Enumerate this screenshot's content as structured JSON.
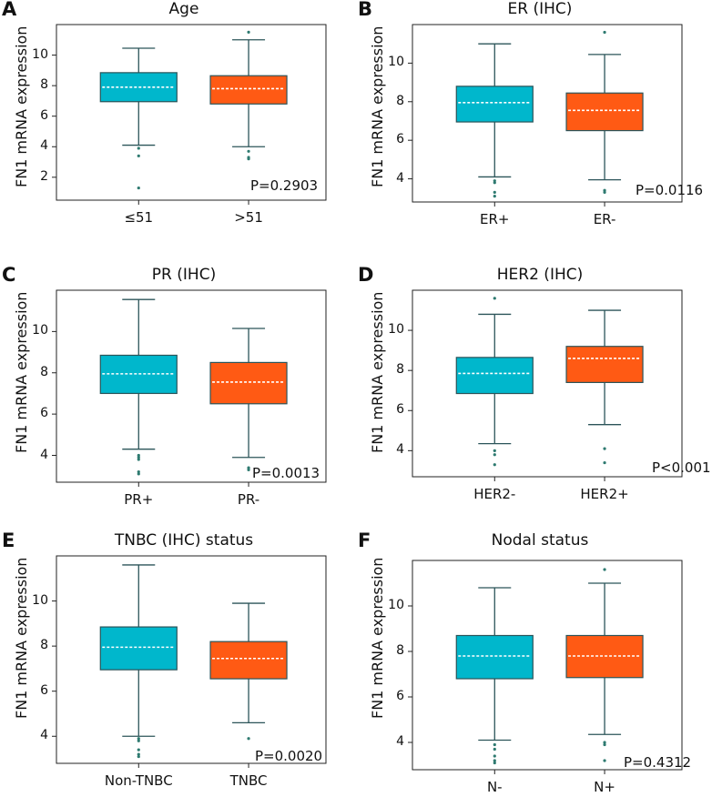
{
  "colors": {
    "cyan": "#00b7cc",
    "orange": "#ff5a14",
    "stroke": "#2b5459",
    "median": "#ffffff"
  },
  "chart_data": [
    {
      "id": "A",
      "type": "box",
      "title": "Age",
      "ylabel": "FN1 mRNA expression",
      "ylim": [
        0.5,
        12
      ],
      "yticks": [
        2,
        4,
        6,
        8,
        10
      ],
      "pvalue": "P=0.2903",
      "groups": [
        {
          "label": "≤51",
          "color": "cyan",
          "whisker_low": 4.1,
          "q1": 6.95,
          "median": 7.9,
          "q3": 8.85,
          "whisker_high": 10.45,
          "outliers": [
            3.9,
            3.4,
            1.3
          ]
        },
        {
          "label": ">51",
          "color": "orange",
          "whisker_low": 4.0,
          "q1": 6.8,
          "median": 7.8,
          "q3": 8.65,
          "whisker_high": 11.0,
          "outliers": [
            11.5,
            3.7,
            3.3,
            3.2
          ]
        }
      ]
    },
    {
      "id": "B",
      "type": "box",
      "title": "ER (IHC)",
      "ylabel": "FN1 mRNA expression",
      "ylim": [
        2.8,
        12
      ],
      "yticks": [
        4,
        6,
        8,
        10
      ],
      "pvalue": "P=0.0116",
      "groups": [
        {
          "label": "ER+",
          "color": "cyan",
          "whisker_low": 4.1,
          "q1": 6.95,
          "median": 7.95,
          "q3": 8.8,
          "whisker_high": 11.0,
          "outliers": [
            3.9,
            3.8,
            3.3,
            3.1
          ]
        },
        {
          "label": "ER-",
          "color": "orange",
          "whisker_low": 3.95,
          "q1": 6.5,
          "median": 7.55,
          "q3": 8.45,
          "whisker_high": 10.45,
          "outliers": [
            11.6,
            3.4,
            3.3
          ]
        }
      ]
    },
    {
      "id": "C",
      "type": "box",
      "title": "PR (IHC)",
      "ylabel": "FN1 mRNA expression",
      "ylim": [
        2.7,
        12
      ],
      "yticks": [
        4,
        6,
        8,
        10
      ],
      "pvalue": "P=0.0013",
      "groups": [
        {
          "label": "PR+",
          "color": "cyan",
          "whisker_low": 4.3,
          "q1": 7.0,
          "median": 7.95,
          "q3": 8.85,
          "whisker_high": 11.55,
          "outliers": [
            4.0,
            3.9,
            3.8,
            3.2,
            3.1
          ]
        },
        {
          "label": "PR-",
          "color": "orange",
          "whisker_low": 3.9,
          "q1": 6.5,
          "median": 7.55,
          "q3": 8.5,
          "whisker_high": 10.15,
          "outliers": [
            3.4,
            3.3
          ]
        }
      ]
    },
    {
      "id": "D",
      "type": "box",
      "title": "HER2 (IHC)",
      "ylabel": "FN1 mRNA expression",
      "ylim": [
        2.7,
        12
      ],
      "yticks": [
        4,
        6,
        8,
        10
      ],
      "pvalue": "P<0.001",
      "groups": [
        {
          "label": "HER2-",
          "color": "cyan",
          "whisker_low": 4.35,
          "q1": 6.85,
          "median": 7.85,
          "q3": 8.65,
          "whisker_high": 10.8,
          "outliers": [
            11.6,
            4.0,
            3.8,
            3.3
          ]
        },
        {
          "label": "HER2+",
          "color": "orange",
          "whisker_low": 5.3,
          "q1": 7.4,
          "median": 8.6,
          "q3": 9.2,
          "whisker_high": 11.0,
          "outliers": [
            4.1,
            3.4
          ]
        }
      ]
    },
    {
      "id": "E",
      "type": "box",
      "title": "TNBC (IHC) status",
      "ylabel": "FN1 mRNA expression",
      "ylim": [
        2.8,
        12
      ],
      "yticks": [
        4,
        6,
        8,
        10
      ],
      "pvalue": "P=0.0020",
      "groups": [
        {
          "label": "Non-TNBC",
          "color": "cyan",
          "whisker_low": 4.0,
          "q1": 6.95,
          "median": 7.95,
          "q3": 8.85,
          "whisker_high": 11.6,
          "outliers": [
            3.9,
            3.8,
            3.4,
            3.2,
            3.1
          ]
        },
        {
          "label": "TNBC",
          "color": "orange",
          "whisker_low": 4.6,
          "q1": 6.55,
          "median": 7.45,
          "q3": 8.2,
          "whisker_high": 9.9,
          "outliers": [
            3.9
          ]
        }
      ]
    },
    {
      "id": "F",
      "type": "box",
      "title": "Nodal status",
      "ylabel": "FN1 mRNA expression",
      "ylim": [
        2.8,
        12
      ],
      "yticks": [
        4,
        6,
        8,
        10
      ],
      "pvalue": "P=0.4312",
      "groups": [
        {
          "label": "N-",
          "color": "cyan",
          "whisker_low": 4.1,
          "q1": 6.8,
          "median": 7.8,
          "q3": 8.7,
          "whisker_high": 10.8,
          "outliers": [
            3.9,
            3.7,
            3.4,
            3.2,
            3.1
          ]
        },
        {
          "label": "N+",
          "color": "orange",
          "whisker_low": 4.35,
          "q1": 6.85,
          "median": 7.8,
          "q3": 8.7,
          "whisker_high": 11.0,
          "outliers": [
            11.6,
            4.0,
            3.9,
            3.2
          ]
        }
      ]
    }
  ]
}
